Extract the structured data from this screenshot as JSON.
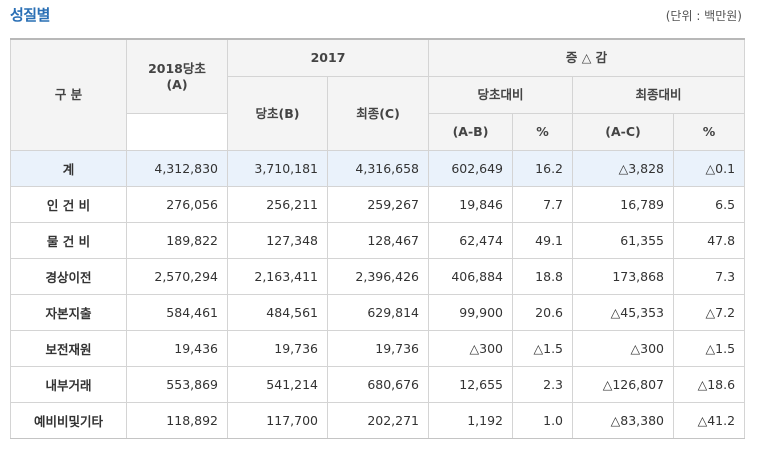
{
  "title": "성질별",
  "unit": "(단위 : 백만원)",
  "header": {
    "category": "구 분",
    "col_2018": "2018당초\n(A)",
    "col_2017": "2017",
    "col_budget_b": "당초(B)",
    "col_final_c": "최종(C)",
    "col_change": "증 △ 감",
    "col_vs_budget": "당초대비",
    "col_vs_final": "최종대비",
    "col_ab": "(A-B)",
    "col_ab_pct": "%",
    "col_ac": "(A-C)",
    "col_ac_pct": "%"
  },
  "rows": [
    {
      "label": "계",
      "a": "4,312,830",
      "b": "3,710,181",
      "c": "4,316,658",
      "ab": "602,649",
      "ab_pct": "16.2",
      "ac": "△3,828",
      "ac_pct": "△0.1"
    },
    {
      "label": "인 건 비",
      "a": "276,056",
      "b": "256,211",
      "c": "259,267",
      "ab": "19,846",
      "ab_pct": "7.7",
      "ac": "16,789",
      "ac_pct": "6.5"
    },
    {
      "label": "물 건 비",
      "a": "189,822",
      "b": "127,348",
      "c": "128,467",
      "ab": "62,474",
      "ab_pct": "49.1",
      "ac": "61,355",
      "ac_pct": "47.8"
    },
    {
      "label": "경상이전",
      "a": "2,570,294",
      "b": "2,163,411",
      "c": "2,396,426",
      "ab": "406,884",
      "ab_pct": "18.8",
      "ac": "173,868",
      "ac_pct": "7.3"
    },
    {
      "label": "자본지출",
      "a": "584,461",
      "b": "484,561",
      "c": "629,814",
      "ab": "99,900",
      "ab_pct": "20.6",
      "ac": "△45,353",
      "ac_pct": "△7.2"
    },
    {
      "label": "보전재원",
      "a": "19,436",
      "b": "19,736",
      "c": "19,736",
      "ab": "△300",
      "ab_pct": "△1.5",
      "ac": "△300",
      "ac_pct": "△1.5"
    },
    {
      "label": "내부거래",
      "a": "553,869",
      "b": "541,214",
      "c": "680,676",
      "ab": "12,655",
      "ab_pct": "2.3",
      "ac": "△126,807",
      "ac_pct": "△18.6"
    },
    {
      "label": "예비비및기타",
      "a": "118,892",
      "b": "117,700",
      "c": "202,271",
      "ab": "1,192",
      "ab_pct": "1.0",
      "ac": "△83,380",
      "ac_pct": "△41.2"
    }
  ],
  "colors": {
    "title": "#2a6fb5",
    "header_bg": "#f4f4f4",
    "total_row_bg": "#eaf2fb",
    "border": "#d4d4d4"
  }
}
